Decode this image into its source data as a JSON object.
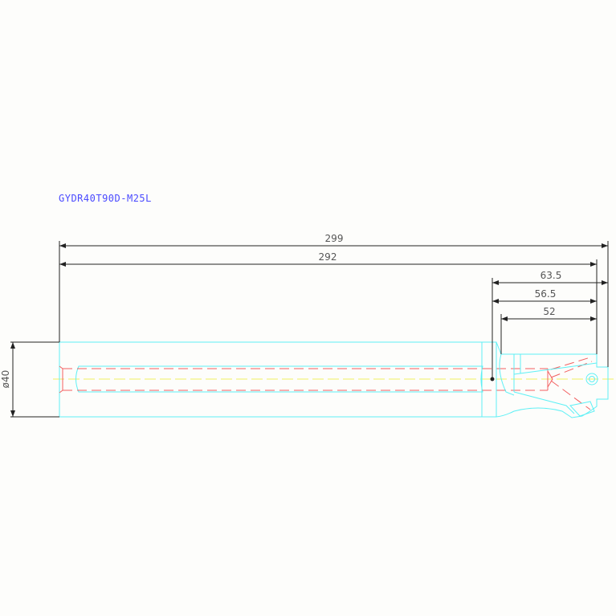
{
  "drawing": {
    "part_number": "GYDR40T90D-M25L",
    "dimensions": {
      "overall_length": "299",
      "body_length": "292",
      "head_length_outer": "63.5",
      "head_length_mid": "56.5",
      "head_length_inner": "52",
      "diameter": "ø40"
    },
    "colors": {
      "outline": "#5ff0f5",
      "hidden_lines": "#f26060",
      "centerline": "#f0f060",
      "dimension_lines": "#222222",
      "title": "#4a4aff"
    }
  }
}
